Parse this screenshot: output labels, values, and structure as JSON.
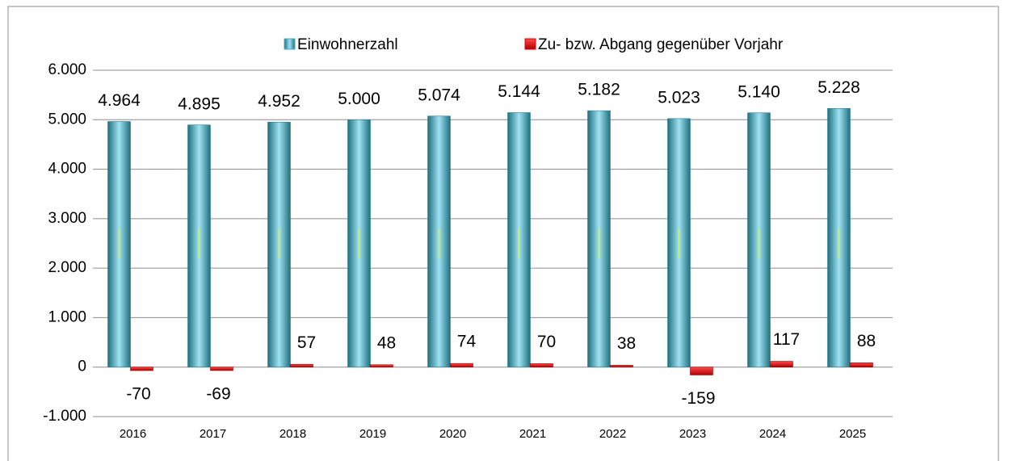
{
  "chart_data": {
    "type": "bar",
    "categories": [
      "2016",
      "2017",
      "2018",
      "2019",
      "2020",
      "2021",
      "2022",
      "2023",
      "2024",
      "2025"
    ],
    "series": [
      {
        "name": "Einwohnerzahl",
        "color": "#4bacc6",
        "values": [
          4964,
          4895,
          4952,
          5000,
          5074,
          5144,
          5182,
          5023,
          5140,
          5228
        ],
        "value_labels": [
          "4.964",
          "4.895",
          "4.952",
          "5.000",
          "5.074",
          "5.144",
          "5.182",
          "5.023",
          "5.140",
          "5.228"
        ]
      },
      {
        "name": "Zu- bzw. Abgang gegenüber Vorjahr",
        "color": "#e00000",
        "values": [
          -70,
          -69,
          57,
          48,
          74,
          70,
          38,
          -159,
          117,
          88
        ]
      }
    ],
    "ylim": [
      -1000,
      6000
    ],
    "yticks": [
      {
        "value": -1000,
        "label": "-1.000"
      },
      0,
      {
        "value": 1000,
        "label": "1.000"
      },
      {
        "value": 2000,
        "label": "2.000"
      },
      {
        "value": 3000,
        "label": "3.000"
      },
      {
        "value": 4000,
        "label": "4.000"
      },
      {
        "value": 5000,
        "label": "5.000"
      },
      {
        "value": 6000,
        "label": "6.000"
      }
    ],
    "grid": true
  }
}
